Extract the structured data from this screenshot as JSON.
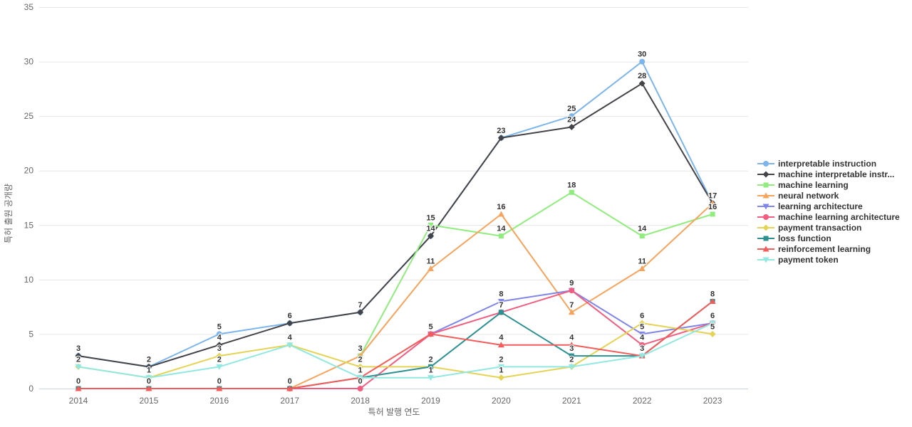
{
  "chart_data": {
    "type": "line",
    "title": "",
    "xlabel": "특허 발행 연도",
    "ylabel": "특허 출원 공개량",
    "x": [
      2014,
      2015,
      2016,
      2017,
      2018,
      2019,
      2020,
      2021,
      2022,
      2023
    ],
    "ylim": [
      0,
      35
    ],
    "yticks": [
      0,
      5,
      10,
      15,
      20,
      25,
      30,
      35
    ],
    "grid": true,
    "legend_position": "right",
    "series": [
      {
        "name": "interpretable instruction",
        "color": "#7cb5ec",
        "marker": "circle",
        "values": [
          3,
          2,
          5,
          6,
          7,
          14,
          23,
          25,
          30,
          17
        ]
      },
      {
        "name": "machine interpretable instr...",
        "color": "#434348",
        "marker": "diamond",
        "values": [
          3,
          2,
          4,
          6,
          7,
          14,
          23,
          24,
          28,
          17
        ]
      },
      {
        "name": "machine learning",
        "color": "#90ed7d",
        "marker": "square",
        "values": [
          null,
          null,
          null,
          null,
          3,
          15,
          14,
          18,
          14,
          16
        ]
      },
      {
        "name": "neural network",
        "color": "#f7a35c",
        "marker": "triangle",
        "values": [
          null,
          null,
          null,
          0,
          3,
          11,
          16,
          7,
          11,
          17
        ]
      },
      {
        "name": "learning architecture",
        "color": "#8085e9",
        "marker": "triangle-down",
        "values": [
          null,
          null,
          null,
          null,
          null,
          5,
          8,
          9,
          5,
          6
        ]
      },
      {
        "name": "machine learning architecture",
        "color": "#f15c80",
        "marker": "circle",
        "values": [
          null,
          null,
          null,
          0,
          0,
          5,
          7,
          9,
          4,
          6
        ]
      },
      {
        "name": "payment transaction",
        "color": "#e4d354",
        "marker": "diamond",
        "values": [
          2,
          1,
          3,
          4,
          2,
          2,
          1,
          2,
          6,
          5
        ]
      },
      {
        "name": "loss function",
        "color": "#2b908f",
        "marker": "square",
        "values": [
          0,
          0,
          0,
          0,
          1,
          2,
          7,
          3,
          3,
          8
        ]
      },
      {
        "name": "reinforcement learning",
        "color": "#f45b5b",
        "marker": "triangle",
        "values": [
          0,
          0,
          0,
          0,
          1,
          5,
          4,
          4,
          3,
          8
        ]
      },
      {
        "name": "payment token",
        "color": "#91e8e1",
        "marker": "triangle-down",
        "values": [
          2,
          1,
          2,
          4,
          1,
          1,
          2,
          2,
          3,
          6
        ]
      }
    ],
    "axis_colors": {
      "gridline": "#e6e6e6",
      "axis_line": "#ccd6eb",
      "tick_text": "#666666",
      "label_text": "#333333"
    }
  }
}
